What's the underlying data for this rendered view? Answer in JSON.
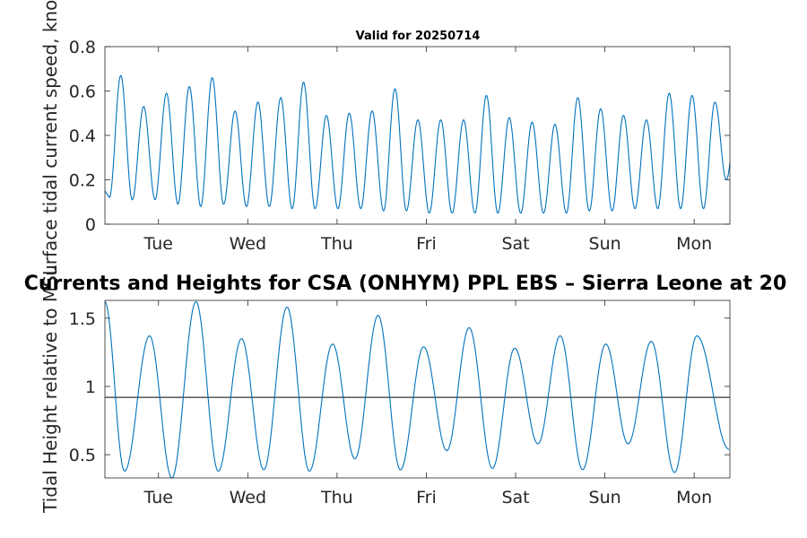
{
  "chart_data": [
    {
      "type": "line",
      "title": "Valid for 20250714",
      "ylabel": "Surface tidal current speed, knots",
      "ylim": [
        0,
        0.8
      ],
      "yticks": [
        "0",
        "0.2",
        "0.4",
        "0.6",
        "0.8"
      ],
      "xlim": [
        0,
        7
      ],
      "xticks": [
        "Tue",
        "Wed",
        "Thu",
        "Fri",
        "Sat",
        "Sun",
        "Mon"
      ],
      "grid": false,
      "series": [
        {
          "color": "#0072BD",
          "peaks": [
            0.67,
            0.53,
            0.59,
            0.62,
            0.66,
            0.51,
            0.55,
            0.57,
            0.64,
            0.49,
            0.5,
            0.51,
            0.61,
            0.47,
            0.47,
            0.47,
            0.58,
            0.48,
            0.46,
            0.45,
            0.57,
            0.52,
            0.49,
            0.47,
            0.59,
            0.58,
            0.55
          ],
          "troughs": [
            0.12,
            0.11,
            0.11,
            0.09,
            0.08,
            0.09,
            0.08,
            0.08,
            0.07,
            0.07,
            0.07,
            0.07,
            0.06,
            0.06,
            0.05,
            0.05,
            0.05,
            0.05,
            0.05,
            0.05,
            0.05,
            0.06,
            0.06,
            0.07,
            0.07,
            0.07,
            0.07,
            0.2
          ]
        }
      ]
    },
    {
      "type": "line",
      "title": "Currents and Heights for CSA (ONHYM) PPL EBS  – Sierra Leone at 20",
      "ylabel": "Tidal Height relative to MSL",
      "ylim": [
        0.33,
        1.63
      ],
      "yticks": [
        "0.5",
        "1",
        "1.5"
      ],
      "xlim": [
        0,
        7
      ],
      "xticks": [
        "Tue",
        "Wed",
        "Thu",
        "Fri",
        "Sat",
        "Sun",
        "Mon"
      ],
      "grid": false,
      "reference_line": 0.92,
      "series": [
        {
          "color": "#0072BD",
          "extrema": [
            [
              0.0,
              1.62
            ],
            [
              0.22,
              0.38
            ],
            [
              0.5,
              1.37
            ],
            [
              0.75,
              0.33
            ],
            [
              1.02,
              1.62
            ],
            [
              1.27,
              0.38
            ],
            [
              1.53,
              1.35
            ],
            [
              1.78,
              0.39
            ],
            [
              2.04,
              1.58
            ],
            [
              2.29,
              0.38
            ],
            [
              2.55,
              1.31
            ],
            [
              2.8,
              0.47
            ],
            [
              3.06,
              1.52
            ],
            [
              3.31,
              0.39
            ],
            [
              3.57,
              1.29
            ],
            [
              3.83,
              0.53
            ],
            [
              4.08,
              1.43
            ],
            [
              4.34,
              0.4
            ],
            [
              4.59,
              1.28
            ],
            [
              4.85,
              0.58
            ],
            [
              5.1,
              1.37
            ],
            [
              5.35,
              0.39
            ],
            [
              5.61,
              1.31
            ],
            [
              5.86,
              0.58
            ],
            [
              6.12,
              1.33
            ],
            [
              6.38,
              0.37
            ],
            [
              6.63,
              1.37
            ],
            [
              6.99,
              0.54
            ]
          ]
        }
      ]
    }
  ]
}
